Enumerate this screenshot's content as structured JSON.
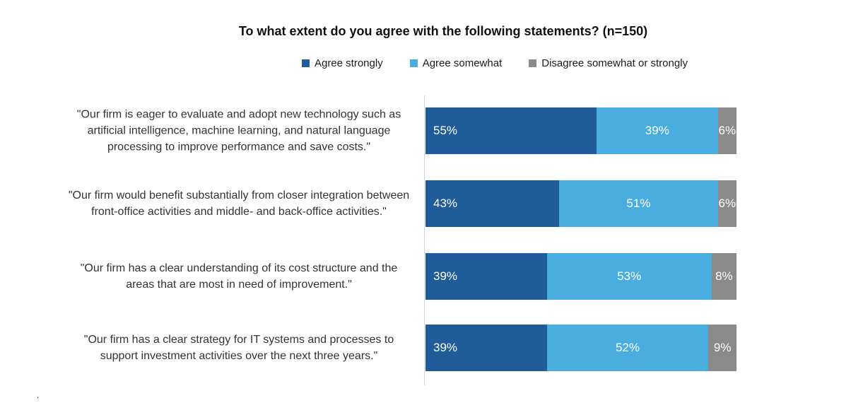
{
  "chart_data": {
    "type": "bar",
    "orientation": "horizontal-stacked",
    "title": "To what extent do you agree with the following statements? (n=150)",
    "legend_position": "top-center",
    "xlim": [
      0,
      100
    ],
    "unit": "%",
    "data_labels": "percent-inside-white",
    "grid": "off",
    "axis_line_color": "#d6d6d6",
    "categories": [
      "\"Our firm is eager to evaluate and adopt new technology such as artificial intelligence, machine learning, and natural language processing to improve performance and save costs.\"",
      "\"Our firm would benefit substantially from closer integration between front-office activities and middle- and back-office activities.\"",
      "\"Our firm has a clear understanding of its cost structure and the areas that are most in need of improvement.\"",
      "\"Our firm has a clear strategy for IT systems and processes to support investment activities over the next three years.\""
    ],
    "series": [
      {
        "name": "Agree strongly",
        "color": "#1f5c99",
        "values": [
          55,
          43,
          39,
          39
        ]
      },
      {
        "name": "Agree somewhat",
        "color": "#4aade0",
        "values": [
          39,
          51,
          53,
          52
        ]
      },
      {
        "name": "Disagree somewhat or strongly",
        "color": "#8a8a8a",
        "values": [
          6,
          6,
          8,
          9
        ]
      }
    ]
  },
  "footnote": {
    "text": "."
  }
}
